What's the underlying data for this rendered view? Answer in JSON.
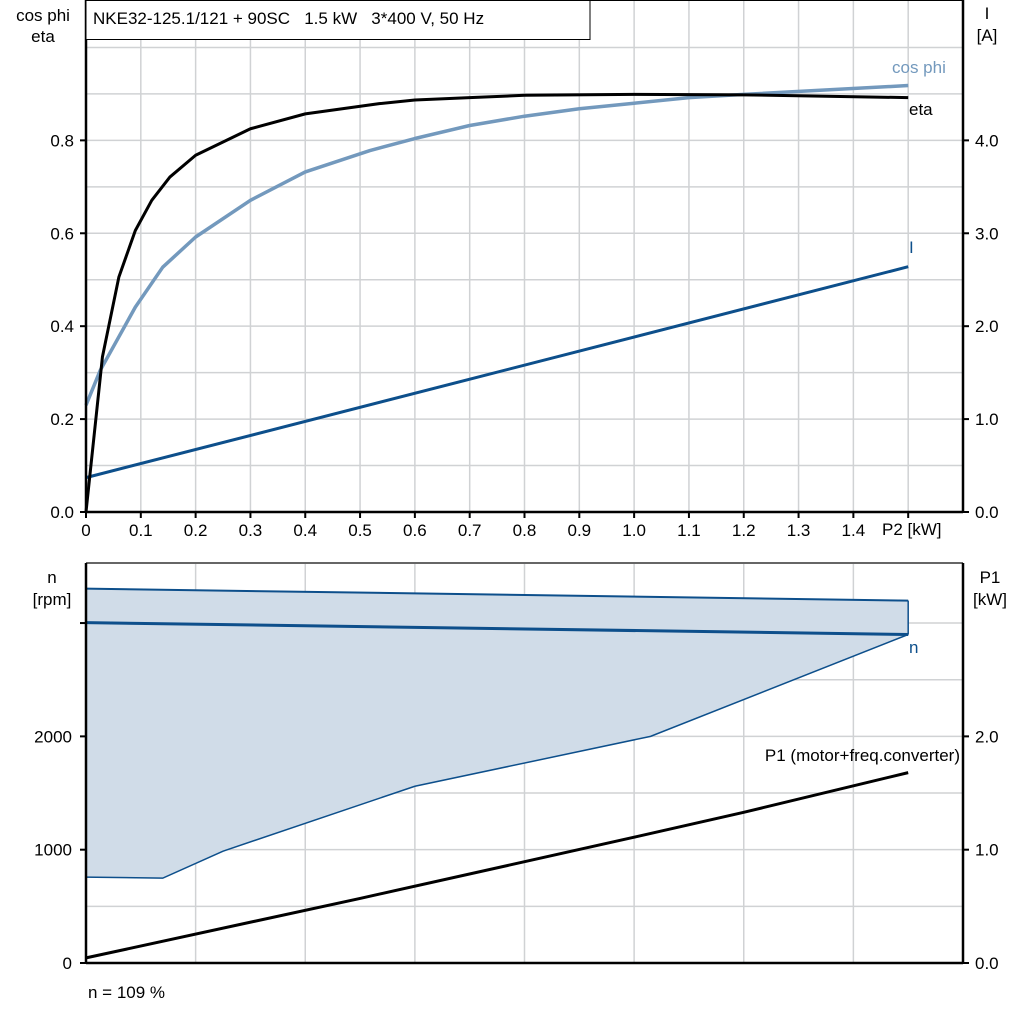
{
  "chart_data": [
    {
      "type": "line",
      "title": "NKE32-125.1/121 + 90SC   1.5 kW   3*400 V, 50 Hz",
      "xlabel": "P2 [kW]",
      "ylabel_left": [
        "cos phi",
        "eta"
      ],
      "ylabel_right": [
        "I",
        "[A]"
      ],
      "xlim": [
        0,
        1.6
      ],
      "ylim_left": [
        0,
        1.1
      ],
      "ylim_right": [
        0,
        5.5
      ],
      "x_ticks": [
        "0",
        "0.1",
        "0.2",
        "0.3",
        "0.4",
        "0.5",
        "0.6",
        "0.7",
        "0.8",
        "0.9",
        "1.0",
        "1.1",
        "1.2",
        "1.3",
        "1.4"
      ],
      "y_ticks_left": [
        "0.0",
        "0.2",
        "0.4",
        "0.6",
        "0.8"
      ],
      "y_ticks_right": [
        "0.0",
        "1.0",
        "2.0",
        "3.0",
        "4.0"
      ],
      "grid": true,
      "series": [
        {
          "name": "eta",
          "axis": "left",
          "color": "#000000",
          "points": [
            [
              0,
              0
            ],
            [
              0.03,
              0.334
            ],
            [
              0.06,
              0.506
            ],
            [
              0.09,
              0.606
            ],
            [
              0.12,
              0.671
            ],
            [
              0.153,
              0.721
            ],
            [
              0.2,
              0.768
            ],
            [
              0.3,
              0.825
            ],
            [
              0.4,
              0.857
            ],
            [
              0.535,
              0.879
            ],
            [
              0.6,
              0.887
            ],
            [
              0.7,
              0.892
            ],
            [
              0.8,
              0.897
            ],
            [
              1.0,
              0.899
            ],
            [
              1.2,
              0.898
            ],
            [
              1.5,
              0.892
            ]
          ]
        },
        {
          "name": "cos phi",
          "axis": "left",
          "color": "#7399bd",
          "points": [
            [
              0,
              0.23
            ],
            [
              0.026,
              0.305
            ],
            [
              0.09,
              0.441
            ],
            [
              0.14,
              0.527
            ],
            [
              0.2,
              0.592
            ],
            [
              0.3,
              0.671
            ],
            [
              0.4,
              0.732
            ],
            [
              0.518,
              0.778
            ],
            [
              0.6,
              0.804
            ],
            [
              0.7,
              0.832
            ],
            [
              0.8,
              0.852
            ],
            [
              0.9,
              0.868
            ],
            [
              1.0,
              0.88
            ],
            [
              1.1,
              0.892
            ],
            [
              1.2,
              0.899
            ],
            [
              1.5,
              0.918
            ]
          ]
        },
        {
          "name": "I",
          "axis": "right",
          "color": "#0d4f8b",
          "points": [
            [
              0,
              0.37
            ],
            [
              1.5,
              2.64
            ]
          ]
        }
      ]
    },
    {
      "type": "area",
      "xlim": [
        0,
        1.6
      ],
      "ylabel_left": [
        "n",
        "[rpm]"
      ],
      "ylabel_right": [
        "P1",
        "[kW]"
      ],
      "ylim_left": [
        0,
        3530
      ],
      "ylim_right": [
        0,
        3.53
      ],
      "y_ticks_left": [
        "0",
        "1000",
        "2000"
      ],
      "y_ticks_right": [
        "0.0",
        "1.0",
        "2.0"
      ],
      "grid": true,
      "band": {
        "color": "#d0dce8",
        "edge_color": "#0d4f8b",
        "upper": [
          [
            0,
            3304
          ],
          [
            1.5,
            3198
          ]
        ],
        "lower": [
          [
            0,
            758
          ],
          [
            0.14,
            749
          ],
          [
            0.25,
            987
          ],
          [
            0.6,
            1560
          ],
          [
            1.03,
            2000
          ],
          [
            1.5,
            2899
          ]
        ]
      },
      "series": [
        {
          "name": "n",
          "axis": "left",
          "color": "#0d4f8b",
          "points": [
            [
              0,
              3004
            ],
            [
              1.5,
              2899
            ]
          ]
        },
        {
          "name": "P1 (motor+freq.converter)",
          "axis": "right",
          "color": "#000000",
          "points": [
            [
              0,
              0.045
            ],
            [
              0.5,
              0.57
            ],
            [
              1.0,
              1.11
            ],
            [
              1.2,
              1.33
            ],
            [
              1.5,
              1.68
            ]
          ]
        }
      ],
      "footnote": "n = 109 %"
    }
  ]
}
